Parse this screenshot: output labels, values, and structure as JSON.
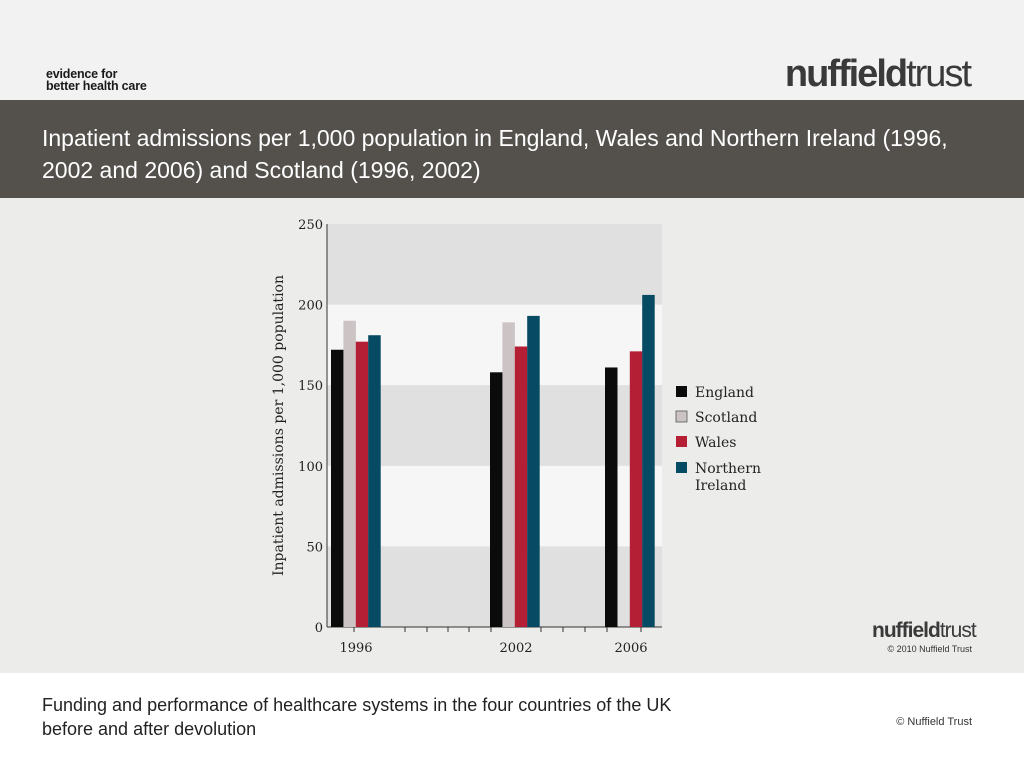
{
  "header": {
    "tagline_line1": "evidence for",
    "tagline_line2": "better health care",
    "logo_part1": "nuffield",
    "logo_part2": "trust"
  },
  "title": "Inpatient admissions per 1,000 population in England, Wales and Northern Ireland (1996, 2002 and 2006) and Scotland (1996, 2002)",
  "chart_data": {
    "type": "bar",
    "categories": [
      "1996",
      "2002",
      "2006"
    ],
    "series": [
      {
        "name": "England",
        "color": "#0b0b0b",
        "values": [
          172,
          158,
          161
        ]
      },
      {
        "name": "Scotland",
        "color": "#ccc4c4",
        "values": [
          190,
          189,
          null
        ]
      },
      {
        "name": "Wales",
        "color": "#b51f35",
        "values": [
          177,
          174,
          171
        ]
      },
      {
        "name": "Northern Ireland",
        "color": "#064a63",
        "values": [
          181,
          193,
          206
        ]
      }
    ],
    "legend_lines": [
      [
        "England"
      ],
      [
        "Scotland"
      ],
      [
        "Wales"
      ],
      [
        "Northern",
        "Ireland"
      ]
    ],
    "ylabel": "Inpatient admissions per 1,000 population",
    "xlabel": "",
    "ylim": [
      0,
      250
    ],
    "yticks": [
      0,
      50,
      100,
      150,
      200,
      250
    ],
    "legend_position": "right",
    "background_bands": true
  },
  "chart_logo": {
    "part1": "nuffield",
    "part2": "trust",
    "copyright": "© 2010 Nuffield Trust"
  },
  "footer": {
    "text": "Funding and performance of healthcare systems in the four countries of the UK before and after devolution",
    "copyright": "© Nuffield Trust"
  }
}
